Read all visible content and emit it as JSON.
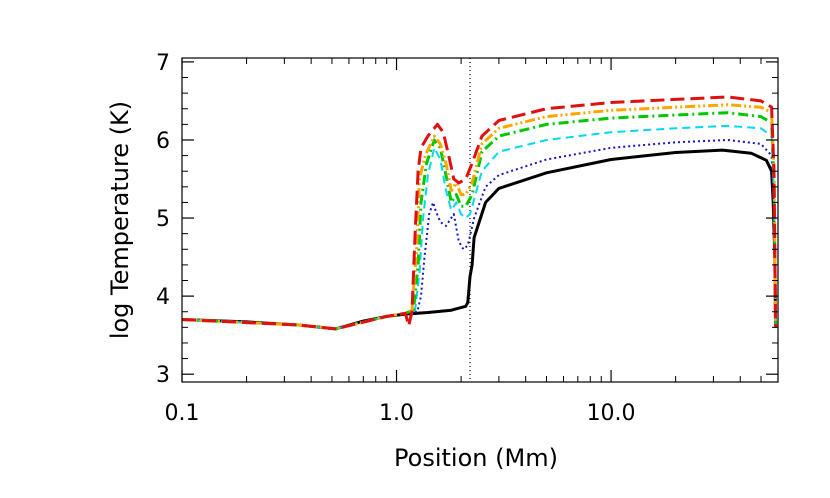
{
  "chart_data": {
    "type": "line",
    "title": "",
    "xlabel": "Position (Mm)",
    "ylabel": "log Temperature (K)",
    "x_scale": "log",
    "xlim": [
      0.1,
      60
    ],
    "ylim": [
      2.9,
      7.05
    ],
    "x_ticks": [
      {
        "value": 0.1,
        "label": "0.1"
      },
      {
        "value": 1.0,
        "label": "1.0"
      },
      {
        "value": 10.0,
        "label": "10.0"
      }
    ],
    "y_ticks": [
      {
        "value": 3,
        "label": "3"
      },
      {
        "value": 4,
        "label": "4"
      },
      {
        "value": 5,
        "label": "5"
      },
      {
        "value": 6,
        "label": "6"
      },
      {
        "value": 7,
        "label": "7"
      }
    ],
    "reference_line": {
      "x": 2.2,
      "style": "dotted",
      "color": "#000000"
    },
    "grid": false,
    "legend": "none",
    "series": [
      {
        "color": "#000000",
        "dash": "solid",
        "width": 3,
        "x": [
          0.1,
          0.2,
          0.35,
          0.52,
          0.7,
          0.9,
          1.1,
          1.4,
          1.8,
          2.1,
          2.15,
          2.2,
          2.25,
          2.3,
          2.6,
          3.0,
          5.0,
          10.0,
          20.0,
          33.0,
          45.0,
          53.0,
          56.0,
          57.0,
          58.0,
          58.5
        ],
        "y": [
          3.7,
          3.67,
          3.63,
          3.58,
          3.68,
          3.74,
          3.77,
          3.79,
          3.82,
          3.87,
          3.92,
          4.25,
          4.4,
          4.75,
          5.2,
          5.38,
          5.58,
          5.75,
          5.84,
          5.87,
          5.83,
          5.74,
          5.6,
          5.2,
          4.5,
          3.6
        ]
      },
      {
        "color": "#1515c8",
        "dash": "dotted",
        "width": 2,
        "x": [
          0.1,
          0.35,
          0.52,
          0.9,
          1.1,
          1.25,
          1.3,
          1.35,
          1.42,
          1.48,
          1.52,
          1.6,
          1.7,
          1.85,
          1.95,
          2.05,
          2.15,
          2.3,
          2.6,
          3.0,
          5.0,
          10.0,
          20.0,
          35.0,
          50.0,
          56.0,
          57.5,
          58.5
        ],
        "y": [
          3.7,
          3.63,
          3.58,
          3.74,
          3.78,
          3.8,
          4.0,
          4.5,
          5.05,
          5.2,
          5.1,
          4.95,
          4.9,
          5.05,
          4.7,
          4.6,
          4.65,
          5.0,
          5.4,
          5.55,
          5.75,
          5.9,
          5.97,
          6.0,
          5.95,
          5.8,
          5.0,
          3.6
        ]
      },
      {
        "color": "#00d8ee",
        "dash": "dashed",
        "width": 2,
        "x": [
          0.1,
          0.35,
          0.52,
          0.9,
          1.1,
          1.22,
          1.28,
          1.33,
          1.4,
          1.5,
          1.6,
          1.7,
          1.8,
          1.9,
          2.0,
          2.1,
          2.2,
          2.5,
          3.0,
          5.0,
          10.0,
          20.0,
          35.0,
          50.0,
          56.0,
          57.5,
          58.5
        ],
        "y": [
          3.7,
          3.63,
          3.58,
          3.74,
          3.78,
          3.82,
          4.3,
          5.0,
          5.55,
          5.9,
          5.75,
          5.35,
          5.1,
          5.2,
          5.05,
          5.0,
          5.05,
          5.6,
          5.85,
          6.0,
          6.1,
          6.15,
          6.18,
          6.15,
          6.05,
          5.3,
          3.6
        ]
      },
      {
        "color": "#00c800",
        "dash": "dash-dot",
        "width": 3,
        "x": [
          0.1,
          0.35,
          0.52,
          0.9,
          1.1,
          1.2,
          1.26,
          1.3,
          1.38,
          1.5,
          1.6,
          1.7,
          1.8,
          1.9,
          2.0,
          2.1,
          2.25,
          2.5,
          3.0,
          5.0,
          10.0,
          20.0,
          35.0,
          50.0,
          56.0,
          57.5,
          58.5
        ],
        "y": [
          3.7,
          3.63,
          3.58,
          3.74,
          3.78,
          3.82,
          4.4,
          5.2,
          5.7,
          6.0,
          5.9,
          5.55,
          5.2,
          5.3,
          5.15,
          5.15,
          5.3,
          5.85,
          6.05,
          6.2,
          6.28,
          6.32,
          6.35,
          6.3,
          6.22,
          5.5,
          3.6
        ]
      },
      {
        "color": "#ffa500",
        "dash": "dash-dot-dot",
        "width": 3,
        "x": [
          0.1,
          0.35,
          0.52,
          0.9,
          1.1,
          1.18,
          1.24,
          1.28,
          1.36,
          1.5,
          1.6,
          1.7,
          1.8,
          1.9,
          2.0,
          2.1,
          2.25,
          2.5,
          3.0,
          5.0,
          10.0,
          20.0,
          35.0,
          50.0,
          56.0,
          57.5,
          58.5
        ],
        "y": [
          3.7,
          3.63,
          3.58,
          3.74,
          3.78,
          3.82,
          4.6,
          5.5,
          5.8,
          6.05,
          5.95,
          5.7,
          5.35,
          5.45,
          5.3,
          5.3,
          5.45,
          5.95,
          6.15,
          6.3,
          6.38,
          6.42,
          6.45,
          6.42,
          6.35,
          5.6,
          3.6
        ]
      },
      {
        "color": "#e01010",
        "dash": "long-dash",
        "width": 3,
        "x": [
          0.1,
          0.35,
          0.52,
          0.9,
          1.1,
          1.14,
          1.18,
          1.22,
          1.26,
          1.3,
          1.4,
          1.55,
          1.65,
          1.75,
          1.85,
          1.95,
          2.1,
          2.25,
          2.5,
          3.0,
          5.0,
          10.0,
          20.0,
          35.0,
          50.0,
          56.0,
          57.5,
          58.5
        ],
        "y": [
          3.7,
          3.63,
          3.58,
          3.74,
          3.78,
          3.62,
          3.8,
          4.8,
          5.6,
          5.9,
          6.05,
          6.2,
          6.1,
          5.8,
          5.5,
          5.45,
          5.5,
          5.7,
          6.05,
          6.25,
          6.4,
          6.48,
          6.52,
          6.55,
          6.5,
          6.42,
          5.6,
          3.6
        ]
      }
    ]
  }
}
